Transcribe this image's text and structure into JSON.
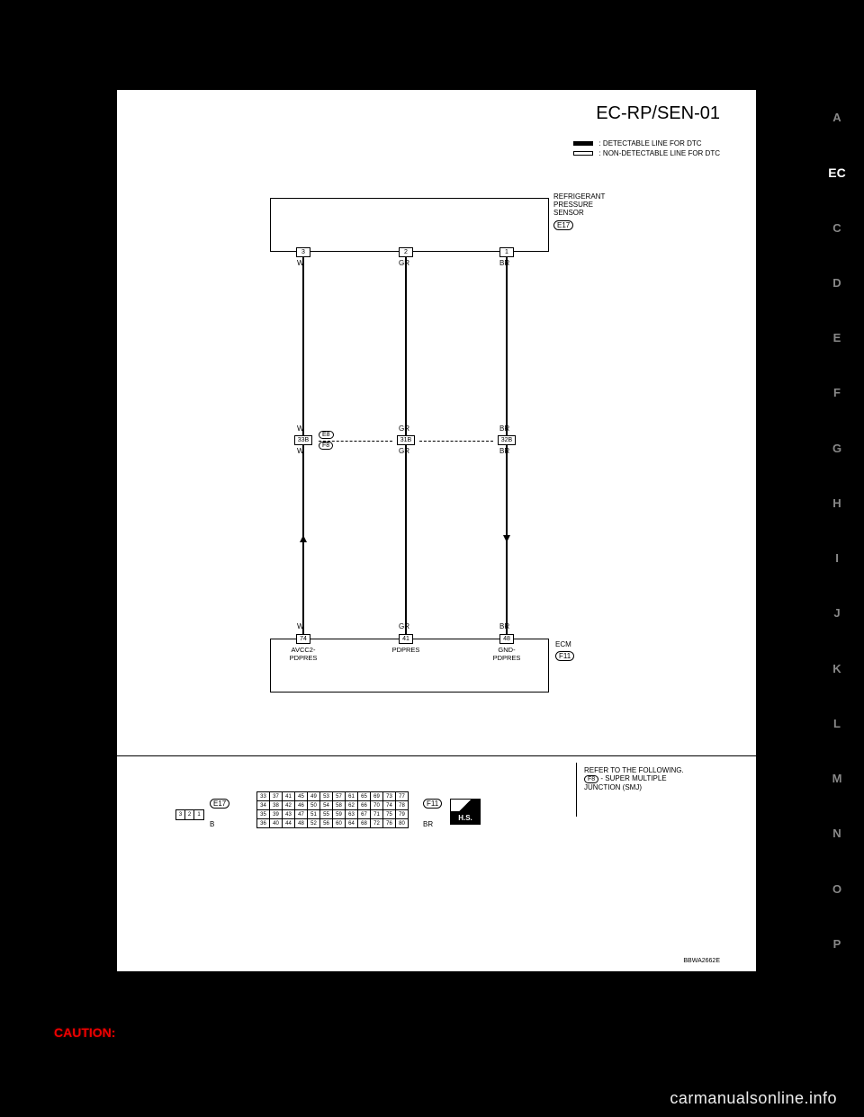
{
  "nav": {
    "tabs": [
      "A",
      "EC",
      "C",
      "D",
      "E",
      "F",
      "G",
      "H",
      "I",
      "J",
      "K",
      "L",
      "M",
      "N",
      "O",
      "P"
    ],
    "active": "EC"
  },
  "diagram": {
    "title": "EC-RP/SEN-01",
    "legend": {
      "solid": ": DETECTABLE LINE FOR DTC",
      "hollow": ": NON-DETECTABLE LINE FOR DTC"
    },
    "sensor": {
      "label": "REFRIGERANT\nPRESSURE\nSENSOR",
      "connector": "E17",
      "pins": {
        "p1": "3",
        "p2": "2",
        "p3": "1"
      },
      "colors": {
        "c1": "W",
        "c2": "GR",
        "c3": "BR"
      }
    },
    "junction": {
      "pins": {
        "p1": "33B",
        "p2": "31B",
        "p3": "32B"
      },
      "conn_upper": "E8",
      "conn_lower": "F8",
      "colors_above": {
        "c1": "W",
        "c2": "GR",
        "c3": "BR"
      },
      "colors_below": {
        "c1": "W",
        "c2": "GR",
        "c3": "BR"
      }
    },
    "ecm": {
      "label": "ECM",
      "connector": "F11",
      "pins": {
        "p1": "74",
        "p2": "41",
        "p3": "48"
      },
      "signals": {
        "s1": "AVCC2-\nPDPRES",
        "s2": "PDPRES",
        "s3": "GND-\nPDPRES"
      },
      "colors": {
        "c1": "W",
        "c2": "GR",
        "c3": "BR"
      }
    }
  },
  "connectors": {
    "e17": {
      "label": "E17",
      "color_code": "B",
      "cells": [
        "3",
        "2",
        "1"
      ]
    },
    "f11": {
      "label": "F11",
      "color_code": "BR",
      "rows": [
        [
          "33",
          "37",
          "41",
          "45",
          "49",
          "53",
          "57",
          "61",
          "65",
          "69",
          "73",
          "77"
        ],
        [
          "34",
          "38",
          "42",
          "46",
          "50",
          "54",
          "58",
          "62",
          "66",
          "70",
          "74",
          "78"
        ],
        [
          "35",
          "39",
          "43",
          "47",
          "51",
          "55",
          "59",
          "63",
          "67",
          "71",
          "75",
          "79"
        ],
        [
          "36",
          "40",
          "44",
          "48",
          "52",
          "56",
          "60",
          "64",
          "68",
          "72",
          "76",
          "80"
        ]
      ]
    },
    "hs": "H.S."
  },
  "refbox": {
    "title": "REFER TO THE FOLLOWING.",
    "conn": "F8",
    "text": "- SUPER MULTIPLE\nJUNCTION (SMJ)"
  },
  "doc_id": "BBWA2662E",
  "caution": "CAUTION:",
  "watermark": "carmanualsonline.info",
  "style": {
    "page_bg": "#ffffff",
    "body_bg": "#000000",
    "line_color": "#000000",
    "nav_inactive": "#888888",
    "nav_active_bg": "#000000",
    "nav_active_fg": "#ffffff",
    "caution_color": "#ee0000"
  }
}
